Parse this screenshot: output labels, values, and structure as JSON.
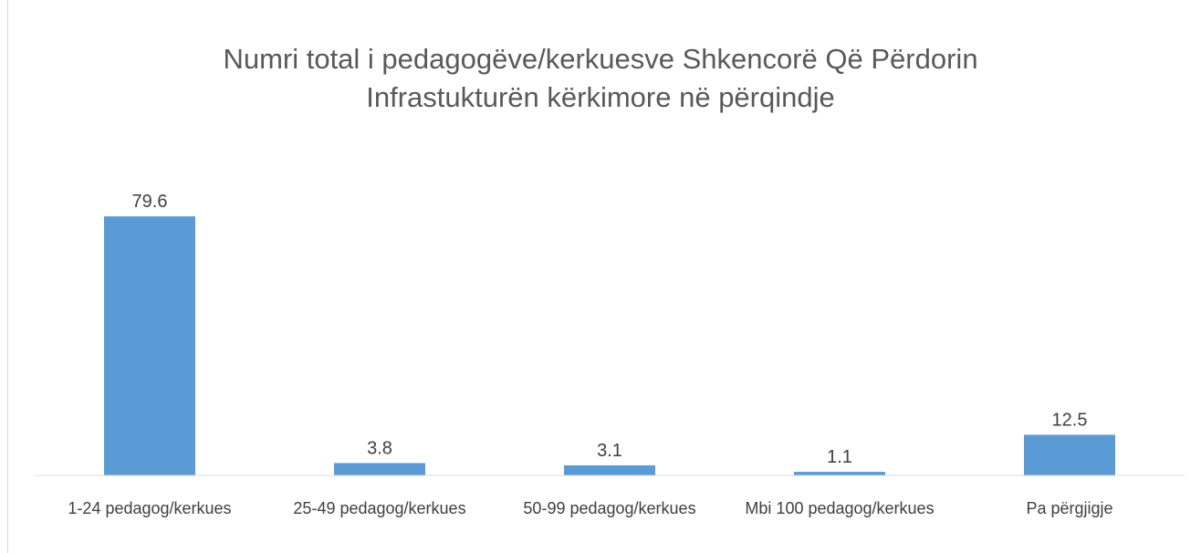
{
  "chart_data": {
    "type": "bar",
    "title": "Numri total i pedagogëve/kerkuesve Shkencorë Që Përdorin Infrastukturën kërkimore në përqindje",
    "categories": [
      "1-24 pedagog/kerkues",
      "25-49 pedagog/kerkues",
      "50-99 pedagog/kerkues",
      "Mbi 100 pedagog/kerkues",
      "Pa përgjigje"
    ],
    "values": [
      79.6,
      3.8,
      3.1,
      1.1,
      12.5
    ],
    "color": "#5b9bd5",
    "ylim": [
      0,
      90
    ]
  }
}
